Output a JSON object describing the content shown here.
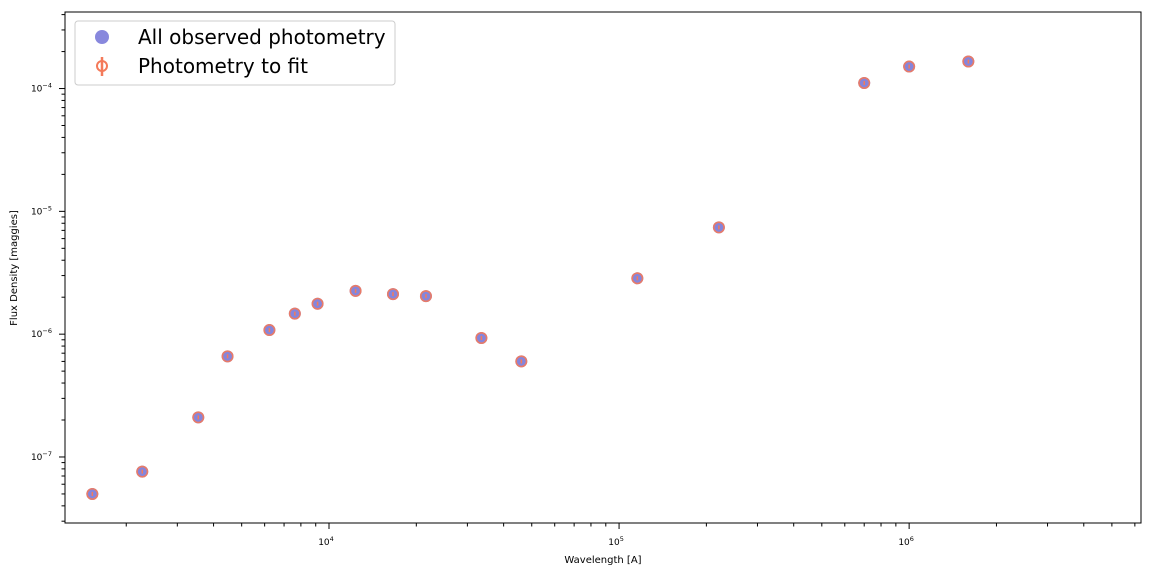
{
  "chart_data": {
    "type": "scatter",
    "title": "",
    "xlabel": "Wavelength [A]",
    "ylabel": "Flux Density [maggies]",
    "xscale": "log",
    "yscale": "log",
    "xlim": [
      1230,
      6300000
    ],
    "ylim": [
      2.9e-08,
      0.00042
    ],
    "grid": false,
    "legend_position": "top-left",
    "x_ticks": [
      {
        "value": 10000,
        "base": "10",
        "exp": "4"
      },
      {
        "value": 100000,
        "base": "10",
        "exp": "5"
      },
      {
        "value": 1000000,
        "base": "10",
        "exp": "6"
      }
    ],
    "y_ticks": [
      {
        "value": 1e-07,
        "base": "10",
        "exp": "−7"
      },
      {
        "value": 1e-06,
        "base": "10",
        "exp": "−6"
      },
      {
        "value": 1e-05,
        "base": "10",
        "exp": "−5"
      },
      {
        "value": 0.0001,
        "base": "10",
        "exp": "−4"
      }
    ],
    "series": [
      {
        "name": "All observed photometry",
        "color": "#7b7bd9",
        "marker": "circle",
        "x": [
          1528,
          2271,
          3543,
          4470,
          6231,
          7625,
          9134,
          12350,
          16620,
          21590,
          33526,
          46028,
          115608,
          220883,
          700000,
          1000000,
          1600000
        ],
        "y": [
          5e-08,
          7.6e-08,
          2.1e-07,
          6.6e-07,
          1.08e-06,
          1.47e-06,
          1.77e-06,
          2.25e-06,
          2.12e-06,
          2.04e-06,
          9.3e-07,
          6e-07,
          2.85e-06,
          7.4e-06,
          0.000111,
          0.000151,
          0.000166
        ]
      },
      {
        "name": "Photometry to fit",
        "color": "#f47a5a",
        "marker": "open-circle-errorbar",
        "x": [
          1528,
          2271,
          3543,
          4470,
          6231,
          7625,
          9134,
          12350,
          16620,
          21590,
          33526,
          46028,
          115608,
          220883,
          700000,
          1000000,
          1600000
        ],
        "y": [
          5e-08,
          7.6e-08,
          2.1e-07,
          6.6e-07,
          1.08e-06,
          1.47e-06,
          1.77e-06,
          2.25e-06,
          2.12e-06,
          2.04e-06,
          9.3e-07,
          6e-07,
          2.85e-06,
          7.4e-06,
          0.000111,
          0.000151,
          0.000166
        ]
      }
    ]
  }
}
